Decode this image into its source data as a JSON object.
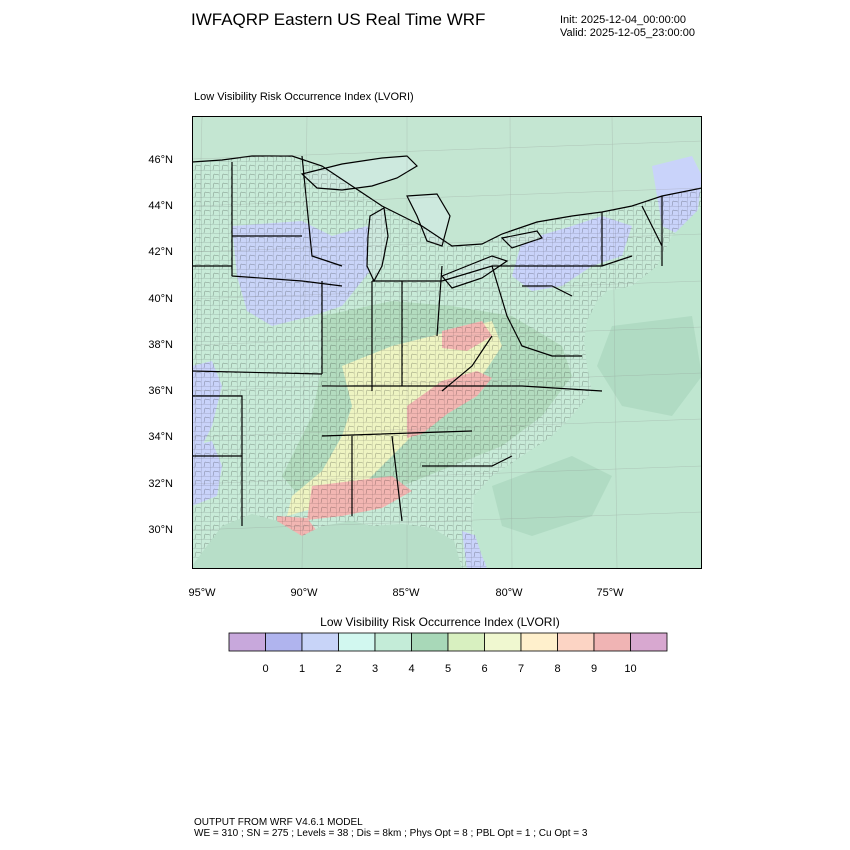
{
  "header": {
    "title": "IWFAQRP Eastern US Real Time WRF",
    "init": "Init: 2025-12-04_00:00:00",
    "valid": "Valid: 2025-12-05_23:00:00"
  },
  "map": {
    "title": "Low Visibility Risk Occurrence Index   (LVORI)",
    "lat_labels": [
      "46°N",
      "44°N",
      "42°N",
      "40°N",
      "38°N",
      "36°N",
      "34°N",
      "32°N",
      "30°N"
    ],
    "lon_labels": [
      "95°W",
      "90°W",
      "85°W",
      "80°W",
      "75°W"
    ],
    "colors": {
      "land": "#c9ead9",
      "ocean": "#bfe6d0",
      "water": "#cde9de",
      "low_blue": "#c9d3fa",
      "mid_green": "#b3dcbf",
      "yellow": "#eef4c2",
      "red": "#f2b6b2"
    }
  },
  "colorbar": {
    "title": "Low Visibility Risk Occurrence Index  (LVORI)",
    "labels": [
      "0",
      "1",
      "2",
      "3",
      "4",
      "5",
      "6",
      "7",
      "8",
      "9",
      "10"
    ],
    "colors": [
      "#c8a8dc",
      "#b0b4ee",
      "#c8d4f8",
      "#d2f8f0",
      "#c4ecd8",
      "#a8d8b8",
      "#d8f0c0",
      "#f0f8d0",
      "#fff0cc",
      "#fcd4c4",
      "#f0b4b4",
      "#d8a8d0"
    ]
  },
  "footer": {
    "line1": "OUTPUT FROM WRF V4.6.1 MODEL",
    "line2": "WE = 310 ; SN = 275 ; Levels = 38 ; Dis = 8km ; Phys Opt = 8 ; PBL Opt = 1 ; Cu Opt = 3"
  }
}
